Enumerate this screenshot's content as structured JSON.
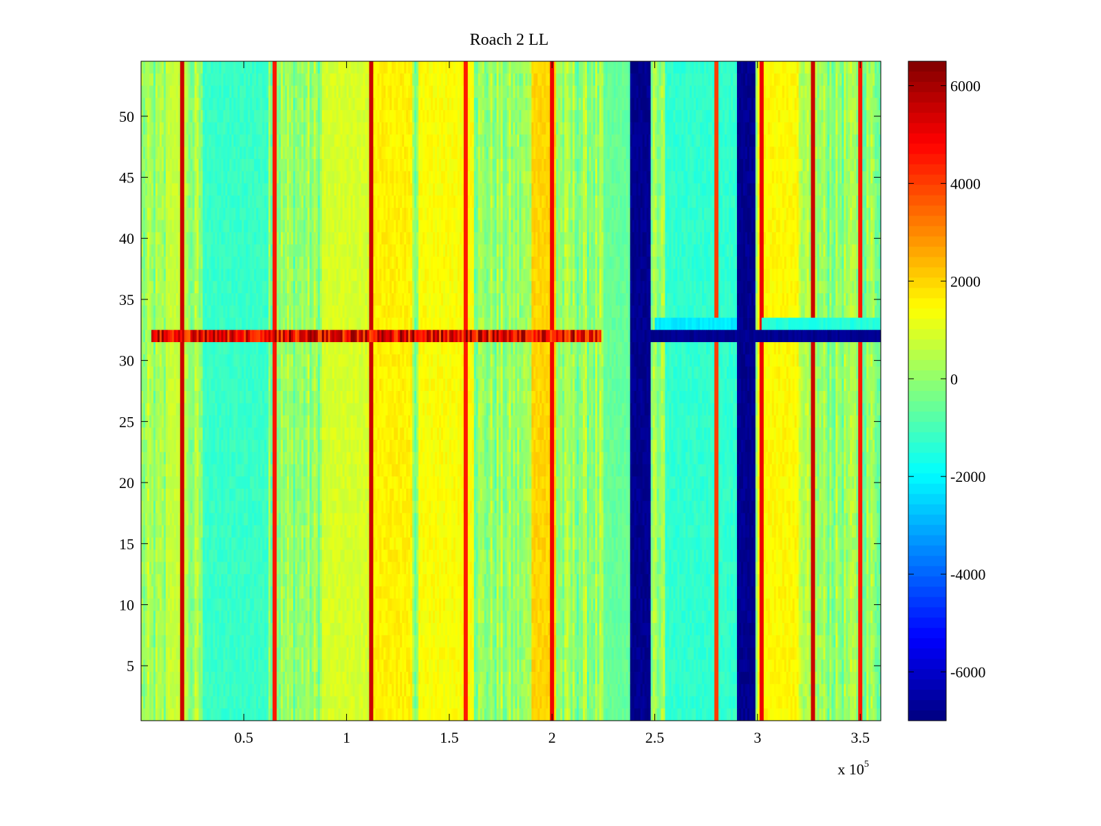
{
  "chart_data": {
    "type": "heatmap",
    "title": "Roach 2 LL",
    "xlabel": "",
    "ylabel": "",
    "x_multiplier_label": "x 10",
    "x_multiplier_exponent": "5",
    "xlim": [
      0,
      3.6
    ],
    "ylim": [
      0.5,
      54.5
    ],
    "x_ticks": [
      {
        "value": 0.5,
        "label": "0.5"
      },
      {
        "value": 1,
        "label": "1"
      },
      {
        "value": 1.5,
        "label": "1.5"
      },
      {
        "value": 2,
        "label": "2"
      },
      {
        "value": 2.5,
        "label": "2.5"
      },
      {
        "value": 3,
        "label": "3"
      },
      {
        "value": 3.5,
        "label": "3.5"
      }
    ],
    "y_ticks": [
      {
        "value": 5,
        "label": "5"
      },
      {
        "value": 10,
        "label": "10"
      },
      {
        "value": 15,
        "label": "15"
      },
      {
        "value": 20,
        "label": "20"
      },
      {
        "value": 25,
        "label": "25"
      },
      {
        "value": 30,
        "label": "30"
      },
      {
        "value": 35,
        "label": "35"
      },
      {
        "value": 40,
        "label": "40"
      },
      {
        "value": 45,
        "label": "45"
      },
      {
        "value": 50,
        "label": "50"
      }
    ],
    "colorbar": {
      "colormap": "jet",
      "range": [
        -7000,
        6500
      ],
      "ticks": [
        {
          "value": 6000,
          "label": "6000"
        },
        {
          "value": 4000,
          "label": "4000"
        },
        {
          "value": 2000,
          "label": "2000"
        },
        {
          "value": 0,
          "label": "0"
        },
        {
          "value": -2000,
          "label": "-2000"
        },
        {
          "value": -4000,
          "label": "-4000"
        },
        {
          "value": -6000,
          "label": "-6000"
        }
      ]
    },
    "grid": false,
    "base_level": 0,
    "column_features": [
      {
        "x": 0.2,
        "value": 5500
      },
      {
        "x": 0.65,
        "value": 4500
      },
      {
        "x": 1.12,
        "value": 5500
      },
      {
        "x": 1.58,
        "value": 4500
      },
      {
        "x": 2.0,
        "value": 5000
      },
      {
        "x": 2.8,
        "value": 4000
      },
      {
        "x": 3.02,
        "value": 5000
      },
      {
        "x": 3.27,
        "value": 5500
      },
      {
        "x": 3.5,
        "value": 4500
      }
    ],
    "bands": [
      {
        "x_range": [
          0.12,
          0.22
        ],
        "value": 700
      },
      {
        "x_range": [
          0.3,
          0.62
        ],
        "value": -1200
      },
      {
        "x_range": [
          0.88,
          1.15
        ],
        "value": 900
      },
      {
        "x_range": [
          1.12,
          1.32
        ],
        "value": 1600
      },
      {
        "x_range": [
          1.35,
          1.62
        ],
        "value": 1400
      },
      {
        "x_range": [
          1.9,
          2.02
        ],
        "value": 2000
      },
      {
        "x_range": [
          2.25,
          2.38
        ],
        "value": -600
      },
      {
        "x_range": [
          2.38,
          2.48
        ],
        "value": -6800
      },
      {
        "x_range": [
          2.55,
          2.9
        ],
        "value": -1300
      },
      {
        "x_range": [
          2.9,
          2.99
        ],
        "value": -6800
      },
      {
        "x_range": [
          3.0,
          3.2
        ],
        "value": 1500
      }
    ],
    "row_features": [
      {
        "y": 32,
        "x_range": [
          0.05,
          2.24
        ],
        "value": 5000
      },
      {
        "y": 32,
        "x_range": [
          2.38,
          3.6
        ],
        "value": -6800
      },
      {
        "y": 33,
        "x_range": [
          2.5,
          2.9
        ],
        "value": -2200
      },
      {
        "y": 33,
        "x_range": [
          3.02,
          3.6
        ],
        "value": -1500
      }
    ]
  }
}
